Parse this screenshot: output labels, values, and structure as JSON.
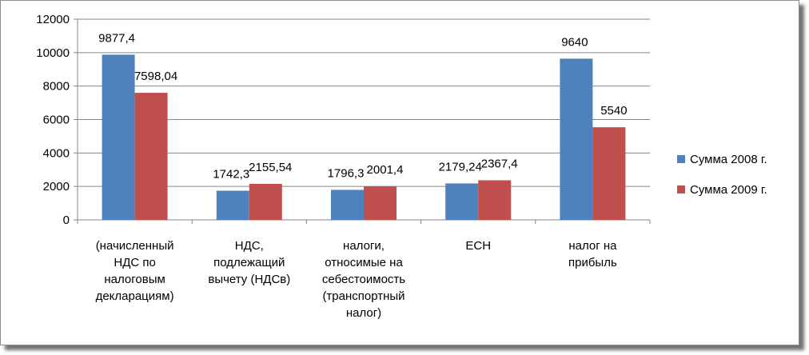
{
  "chart_data": {
    "type": "bar",
    "categories": [
      [
        "(начисленный",
        "НДС по",
        "налоговым",
        "декларациям)"
      ],
      [
        "НДС,",
        "подлежащий",
        "вычету (НДСв)"
      ],
      [
        "налоги,",
        "относимые на",
        "себестоимость",
        "(транспортный",
        "налог)"
      ],
      [
        "ЕСН"
      ],
      [
        "налог на",
        "прибыль"
      ]
    ],
    "series": [
      {
        "name": "Сумма 2008 г.",
        "color": "#4f81bd",
        "values": [
          9877.4,
          1742.3,
          1796.3,
          2179.24,
          9640
        ],
        "labels": [
          "9877,4",
          "1742,3",
          "1796,3",
          "2179,24",
          "9640"
        ]
      },
      {
        "name": "Сумма 2009 г.",
        "color": "#c0504d",
        "values": [
          7598.04,
          2155.54,
          2001.4,
          2367.4,
          5540
        ],
        "labels": [
          "7598,04",
          "2155,54",
          "2001,4",
          "2367,4",
          "5540"
        ]
      }
    ],
    "y_ticks": [
      "0",
      "2000",
      "4000",
      "6000",
      "8000",
      "10000",
      "12000"
    ],
    "ylim": [
      0,
      12000
    ],
    "grid": true,
    "legend_position": "right",
    "title": "",
    "xlabel": "",
    "ylabel": ""
  }
}
